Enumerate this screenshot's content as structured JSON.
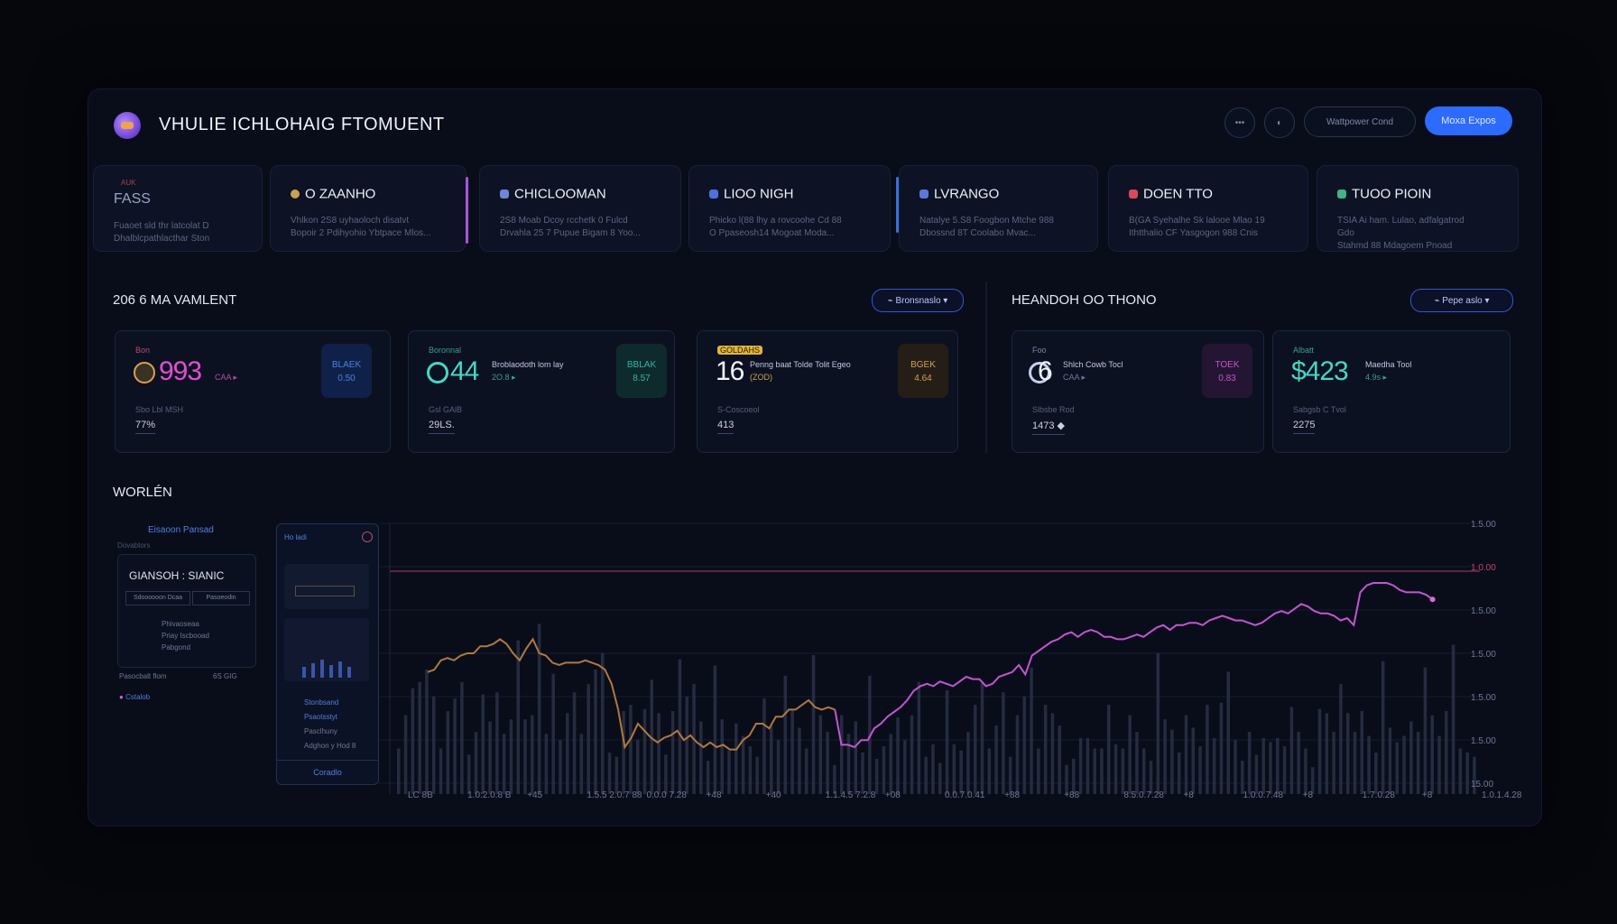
{
  "header": {
    "title": "VHULIE ICHLOHAIG FTOMUENT",
    "icon_btn_1": "•••",
    "icon_btn_2": "◐",
    "secondary_button": "Wattpower Cond",
    "primary_button": "Moxa Expos",
    "logo": "app-logo"
  },
  "tabs": [
    {
      "label": "FASS",
      "tag": "AUK",
      "icon_color": "#d34f6a",
      "desc1": "Fuaoet sld thr latcolat D",
      "desc2": "Dhalblcpathlacthar Ston"
    },
    {
      "label": "O ZAANHO",
      "icon_color": "#c8a24f",
      "desc1": "Vhlkon 2S8 uyhaoloch disatvt",
      "desc2": "Bopoir 2 Pdihyohio Ybtpace Mlos..."
    },
    {
      "label": "CHICLOOMAN",
      "icon_color": "#6f86d6",
      "desc1": "2S8 Moab Dcoy rcchetk 0 Fulcd",
      "desc2": "Drvahla 25 7 Pupue Bigam 8 Yoo..."
    },
    {
      "label": "LIOO NIGH",
      "icon_color": "#4f6ee0",
      "desc1": "Phicko l(88 lhy a rovcoohe Cd 88",
      "desc2": "O Ppaseosh14 Mogoat Moda..."
    },
    {
      "label": "LVRANGO",
      "icon_color": "#5b78d8",
      "desc1": "Natalye 5.S8 Foogbon Mtche 988",
      "desc2": "Dbossnd 8T Coolabo Mvac..."
    },
    {
      "label": "DOEN TTO",
      "icon_color": "#d64b5d",
      "desc1": "B(GA Syehalhe Sk lalooe Mlao 19",
      "desc2": "Ithtthalio CF Yasgogon 988 Cnis"
    },
    {
      "label": "TUOO PIOIN",
      "icon_color": "#3fb38a",
      "desc1": "TSIA Ai ham. Lulao, adfalgatrod Gdo",
      "desc2": "Stahmd 88 Mdagoem Pnoad"
    }
  ],
  "section_left": {
    "title": "206 6 MA VAMLENT",
    "pill": "⌁ Bronsnaslo ▾"
  },
  "section_right": {
    "title": "HEANDOH OO THONO",
    "pill": "⌁ Pepe aslo ▾"
  },
  "cards": [
    {
      "small": "Bon",
      "value": "993",
      "value_color": "#e24ed1",
      "sub": "CAA ▸",
      "sub_color": "#b04f9f",
      "mini1": "",
      "mini2": "",
      "tile_line1": "BLAEK",
      "tile_line2": "0.50",
      "tile_bg": "#0f2148",
      "tile_fg": "#4f7fe0",
      "foot_label": "Sbo Lbl MSH",
      "foot_value": "77%",
      "icon": "coin-icon",
      "icon_color": "#d9a24f"
    },
    {
      "small": "Boronnal",
      "value": "44",
      "value_color": "#47d7c4",
      "sub": "2O.8 ▸",
      "sub_color": "#3f9b8e",
      "mini1": "Broblaodoth lom lay",
      "mini2": "",
      "tile_line1": "BBLAK",
      "tile_line2": "8.57",
      "tile_bg": "#0f2a2d",
      "tile_fg": "#2fb79e",
      "foot_label": "Gsl GAlB",
      "foot_value": "29LS.",
      "icon": "ring-icon",
      "icon_color": "#47d7c4"
    },
    {
      "small": "GOLDAHS",
      "value": "16",
      "value_color": "#f1f4ff",
      "sub": "(ZOD)",
      "sub_color": "#c7a34a",
      "mini1": "Penng baat Tolde Tolit Egeo",
      "mini2": "",
      "tile_line1": "BGEK",
      "tile_line2": "4.64",
      "tile_bg": "#241e17",
      "tile_fg": "#d4a04e",
      "foot_label": "S-Coscoeol",
      "foot_value": "413",
      "icon": "",
      "icon_color": "#e2b63b"
    },
    {
      "small": "Foo",
      "value": "6",
      "value_color": "#f1f4ff",
      "sub": "CAA ▸",
      "sub_color": "#6c7896",
      "mini1": "Shlch Cowb Tocl",
      "mini2": "",
      "tile_line1": "TOEK",
      "tile_line2": "0.83",
      "tile_bg": "#241633",
      "tile_fg": "#c155c9",
      "foot_label": "Slbsbe Rod",
      "foot_value": "1473 ◆",
      "icon": "ring-icon",
      "icon_color": "#c7d0ea"
    },
    {
      "small": "Albatt",
      "value": "$423",
      "value_color": "#47d7c4",
      "sub": "4.9s ▸",
      "sub_color": "#3f9b8e",
      "mini1": "Maedha Tool",
      "mini2": "",
      "tile_line1": "",
      "tile_line2": "",
      "tile_bg": "",
      "tile_fg": "",
      "foot_label": "Sabgsb C Tvol",
      "foot_value": "2275",
      "icon": "",
      "icon_color": ""
    }
  ],
  "workflow": {
    "title": "WORLÉN",
    "mini_header": "Eisaoon Pansad",
    "mini_sub": "Dovabtors",
    "mini_card_title": "GIANSOH : SIANIC",
    "mini_btn1": "Sdoooooon Dcaa",
    "mini_btn2": "Pasoeodin",
    "mini_list": [
      "Phivaoseaa",
      "Priay Iscbooad",
      "Pabgond"
    ],
    "mini_foot_label": "Pasocbalt flom",
    "mini_foot_value": "6S GIG",
    "mini_link": "Cstalob",
    "cond_header": "Ho ladi",
    "cond_items": [
      "Stonbsand",
      "Psaotsstyt",
      "Pasclhuny",
      "Adghon y Hod 8"
    ],
    "cond_button": "Coradlo"
  },
  "colors": {
    "accent": "#2d6bff",
    "magenta": "#c155c9",
    "teal": "#47d7c4",
    "gold": "#c68a47",
    "threshold": "#c24569"
  },
  "chart_data": {
    "type": "line",
    "y_ticks": [
      "1.5.00",
      "1.0.00",
      "1.5.00",
      "1.5.00",
      "1.5.00",
      "1.5.00",
      "15.00"
    ],
    "x_ticks": [
      "LC 8B",
      "1.0:2.0.8 B",
      "+45",
      "1.5.5 2.0.7 88",
      "0.0.0 7.28",
      "+48",
      "+40",
      "1.1.4.5 7.2.8",
      "+08",
      "0.0.7.0.41",
      "+88",
      "+88",
      "8.5.0.7.28",
      "+8",
      "1.0.0.7.48",
      "+8",
      "1.7.0.28",
      "+8",
      "1.0.1.4.28"
    ],
    "threshold": 0.85,
    "line": [
      0.52,
      0.53,
      0.57,
      0.58,
      0.57,
      0.59,
      0.6,
      0.6,
      0.63,
      0.63,
      0.64,
      0.66,
      0.64,
      0.6,
      0.57,
      0.62,
      0.66,
      0.6,
      0.59,
      0.56,
      0.55,
      0.56,
      0.56,
      0.56,
      0.57,
      0.56,
      0.55,
      0.53,
      0.47,
      0.36,
      0.2,
      0.24,
      0.3,
      0.27,
      0.24,
      0.22,
      0.24,
      0.25,
      0.27,
      0.23,
      0.25,
      0.22,
      0.2,
      0.22,
      0.2,
      0.21,
      0.19,
      0.19,
      0.23,
      0.25,
      0.3,
      0.3,
      0.28,
      0.33,
      0.33,
      0.36,
      0.36,
      0.38,
      0.4,
      0.37,
      0.36,
      0.37,
      0.36,
      0.21,
      0.21,
      0.2,
      0.23,
      0.23,
      0.28,
      0.3,
      0.33,
      0.35,
      0.37,
      0.4,
      0.44,
      0.46,
      0.47,
      0.46,
      0.48,
      0.47,
      0.46,
      0.48,
      0.5,
      0.49,
      0.49,
      0.46,
      0.47,
      0.5,
      0.51,
      0.52,
      0.55,
      0.51,
      0.59,
      0.61,
      0.63,
      0.65,
      0.66,
      0.68,
      0.69,
      0.67,
      0.69,
      0.7,
      0.69,
      0.67,
      0.67,
      0.66,
      0.66,
      0.67,
      0.68,
      0.67,
      0.69,
      0.71,
      0.72,
      0.7,
      0.72,
      0.72,
      0.73,
      0.73,
      0.72,
      0.74,
      0.75,
      0.76,
      0.75,
      0.74,
      0.74,
      0.73,
      0.72,
      0.73,
      0.75,
      0.77,
      0.78,
      0.77,
      0.79,
      0.81,
      0.8,
      0.78,
      0.77,
      0.77,
      0.76,
      0.74,
      0.75,
      0.72,
      0.86,
      0.89,
      0.9,
      0.9,
      0.9,
      0.89,
      0.87,
      0.86,
      0.86,
      0.86,
      0.85,
      0.83
    ],
    "bars": [
      0.22,
      0.38,
      0.51,
      0.54,
      0.6,
      0.47,
      0.22,
      0.4,
      0.46,
      0.54,
      0.19,
      0.3,
      0.48,
      0.35,
      0.49,
      0.29,
      0.36,
      0.74,
      0.36,
      0.38,
      0.82,
      0.29,
      0.58,
      0.26,
      0.39,
      0.49,
      0.29,
      0.53,
      0.6,
      0.68,
      0.2,
      0.18,
      0.4,
      0.43,
      0.26,
      0.41,
      0.55,
      0.39,
      0.19,
      0.4,
      0.65,
      0.47,
      0.53,
      0.35,
      0.16,
      0.62,
      0.36,
      0.21,
      0.34,
      0.28,
      0.23,
      0.18,
      0.46,
      0.33,
      0.26,
      0.57,
      0.41,
      0.32,
      0.22,
      0.67,
      0.38,
      0.3,
      0.14,
      0.38,
      0.29,
      0.35,
      0.2,
      0.57,
      0.17,
      0.23,
      0.29,
      0.37,
      0.26,
      0.38,
      0.54,
      0.18,
      0.24,
      0.15,
      0.5,
      0.24,
      0.21,
      0.3,
      0.43,
      0.54,
      0.22,
      0.33,
      0.49,
      0.18,
      0.38,
      0.47,
      0.61,
      0.22,
      0.43,
      0.39,
      0.33,
      0.14,
      0.17,
      0.27,
      0.27,
      0.22,
      0.22,
      0.43,
      0.24,
      0.22,
      0.38,
      0.3,
      0.22,
      0.16,
      0.68,
      0.36,
      0.31,
      0.2,
      0.38,
      0.32,
      0.23,
      0.43,
      0.27,
      0.44,
      0.59,
      0.26,
      0.16,
      0.3,
      0.19,
      0.27,
      0.25,
      0.27,
      0.23,
      0.42,
      0.3,
      0.22,
      0.13,
      0.41,
      0.39,
      0.3,
      0.53,
      0.39,
      0.3,
      0.4,
      0.28,
      0.2,
      0.64,
      0.32,
      0.25,
      0.28,
      0.35,
      0.3,
      0.61,
      0.38,
      0.28,
      0.4,
      0.72,
      0.22,
      0.2,
      0.18
    ]
  }
}
